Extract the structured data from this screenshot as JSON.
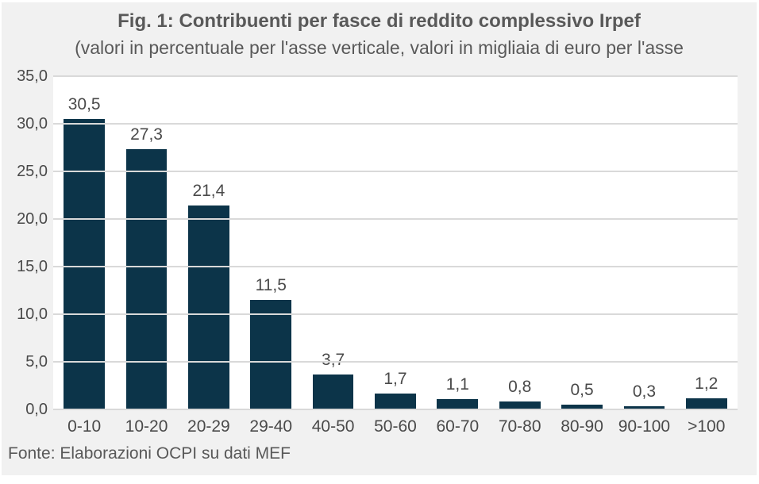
{
  "chart": {
    "title": "Fig. 1: Contribuenti per fasce di reddito complessivo Irpef",
    "subtitle": "(valori in percentuale per l'asse verticale, valori in migliaia di euro per l'asse",
    "source": "Fonte: Elaborazioni OCPI su dati MEF"
  },
  "chart_data": {
    "type": "bar",
    "title": "Fig. 1: Contribuenti per fasce di reddito complessivo Irpef",
    "subtitle": "(valori in percentuale per l'asse verticale, valori in migliaia di euro per l'asse",
    "categories": [
      "0-10",
      "10-20",
      "20-29",
      "29-40",
      "40-50",
      "50-60",
      "60-70",
      "70-80",
      "80-90",
      "90-100",
      ">100"
    ],
    "values": [
      30.5,
      27.3,
      21.4,
      11.5,
      3.7,
      1.7,
      1.1,
      0.8,
      0.5,
      0.3,
      1.2
    ],
    "data_labels": [
      "30,5",
      "27,3",
      "21,4",
      "11,5",
      "3,7",
      "1,7",
      "1,1",
      "0,8",
      "0,5",
      "0,3",
      "1,2"
    ],
    "xlabel": "",
    "ylabel": "",
    "ylim": [
      0,
      35
    ],
    "ytick_step": 5,
    "ytick_labels": [
      "0,0",
      "5,0",
      "10,0",
      "15,0",
      "20,0",
      "25,0",
      "30,0",
      "35,0"
    ],
    "grid": true,
    "legend": false,
    "decimal_separator": ",",
    "source": "Fonte: Elaborazioni OCPI su dati MEF",
    "colors": {
      "bar": "#0c3449",
      "background": "#f1f1f1",
      "plot_background": "#ffffff",
      "gridline": "#d9d9d9",
      "title_text": "#595959",
      "label_text": "#4a4a4a"
    }
  }
}
